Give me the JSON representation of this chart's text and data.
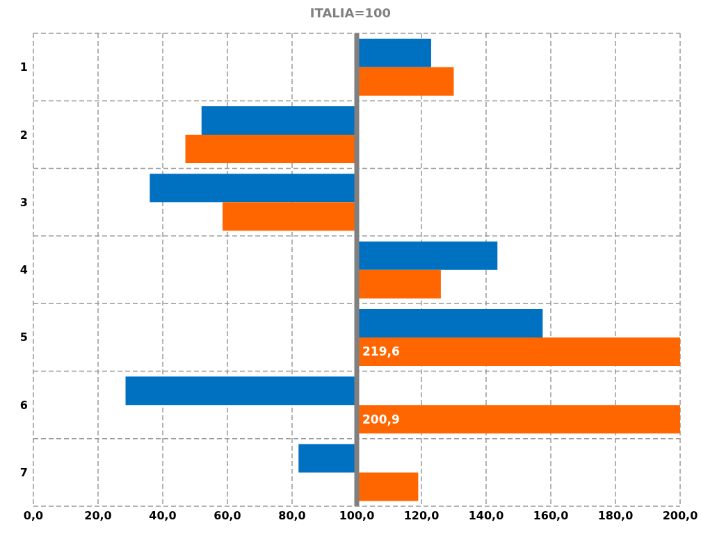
{
  "chart_data": {
    "type": "bar",
    "orientation": "horizontal",
    "title": "ITALIA=100",
    "categories": [
      "1",
      "2",
      "3",
      "4",
      "5",
      "6",
      "7"
    ],
    "series": [
      {
        "color": "#0070c0",
        "base": [
          100,
          100,
          100,
          100,
          100,
          100,
          100
        ],
        "values": [
          23,
          -48,
          -64,
          43.5,
          57.5,
          -71.5,
          -18
        ]
      },
      {
        "color": "#ff6600",
        "base": [
          100,
          100,
          100,
          100,
          100,
          100,
          100
        ],
        "values": [
          30,
          -53,
          -41.5,
          26,
          119.6,
          100.9,
          19
        ],
        "value_labels": [
          null,
          null,
          null,
          null,
          "219,6",
          "200,9",
          null
        ]
      }
    ],
    "xlim": [
      0,
      200
    ],
    "xticks": [
      {
        "value": 0,
        "label": "0,0"
      },
      {
        "value": 20,
        "label": "20,0"
      },
      {
        "value": 40,
        "label": "40,0"
      },
      {
        "value": 60,
        "label": "60,0"
      },
      {
        "value": 80,
        "label": "80,0"
      },
      {
        "value": 100,
        "label": "100,0"
      },
      {
        "value": 120,
        "label": "120,0"
      },
      {
        "value": 140,
        "label": "140,0"
      },
      {
        "value": 160,
        "label": "160,0"
      },
      {
        "value": 180,
        "label": "180,0"
      },
      {
        "value": 200,
        "label": "200,0"
      }
    ],
    "ref_lines": [
      {
        "axis": "x",
        "value": 100,
        "color": "#808080"
      }
    ],
    "grid": true
  }
}
